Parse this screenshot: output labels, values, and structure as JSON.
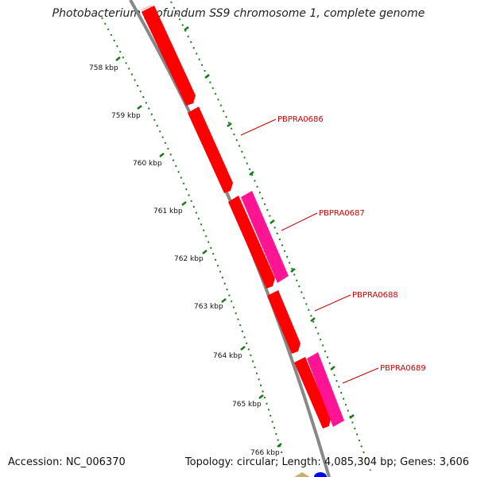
{
  "title": "Photobacterium profundum SS9 chromosome 1, complete genome",
  "footer": {
    "accession": "Accession: NC_006370",
    "summary": "Topology: circular; Length: 4,085,304 bp; Genes: 3,606"
  },
  "colors": {
    "backbone": "#808080",
    "tick": "#1a7a1a",
    "gene_red": "#ff0000",
    "gene_pink": "#ff1493",
    "label": "#cc0000",
    "highlight": "#ffcccc"
  },
  "scale_labels": [
    "758 kbp",
    "759 kbp",
    "760 kbp",
    "761 kbp",
    "762 kbp",
    "763 kbp",
    "764 kbp",
    "765 kbp",
    "766 kbp"
  ],
  "gene_labels": [
    "PBPRA0686",
    "PBPRA0687",
    "PBPRA0688",
    "PBPRA0689"
  ]
}
